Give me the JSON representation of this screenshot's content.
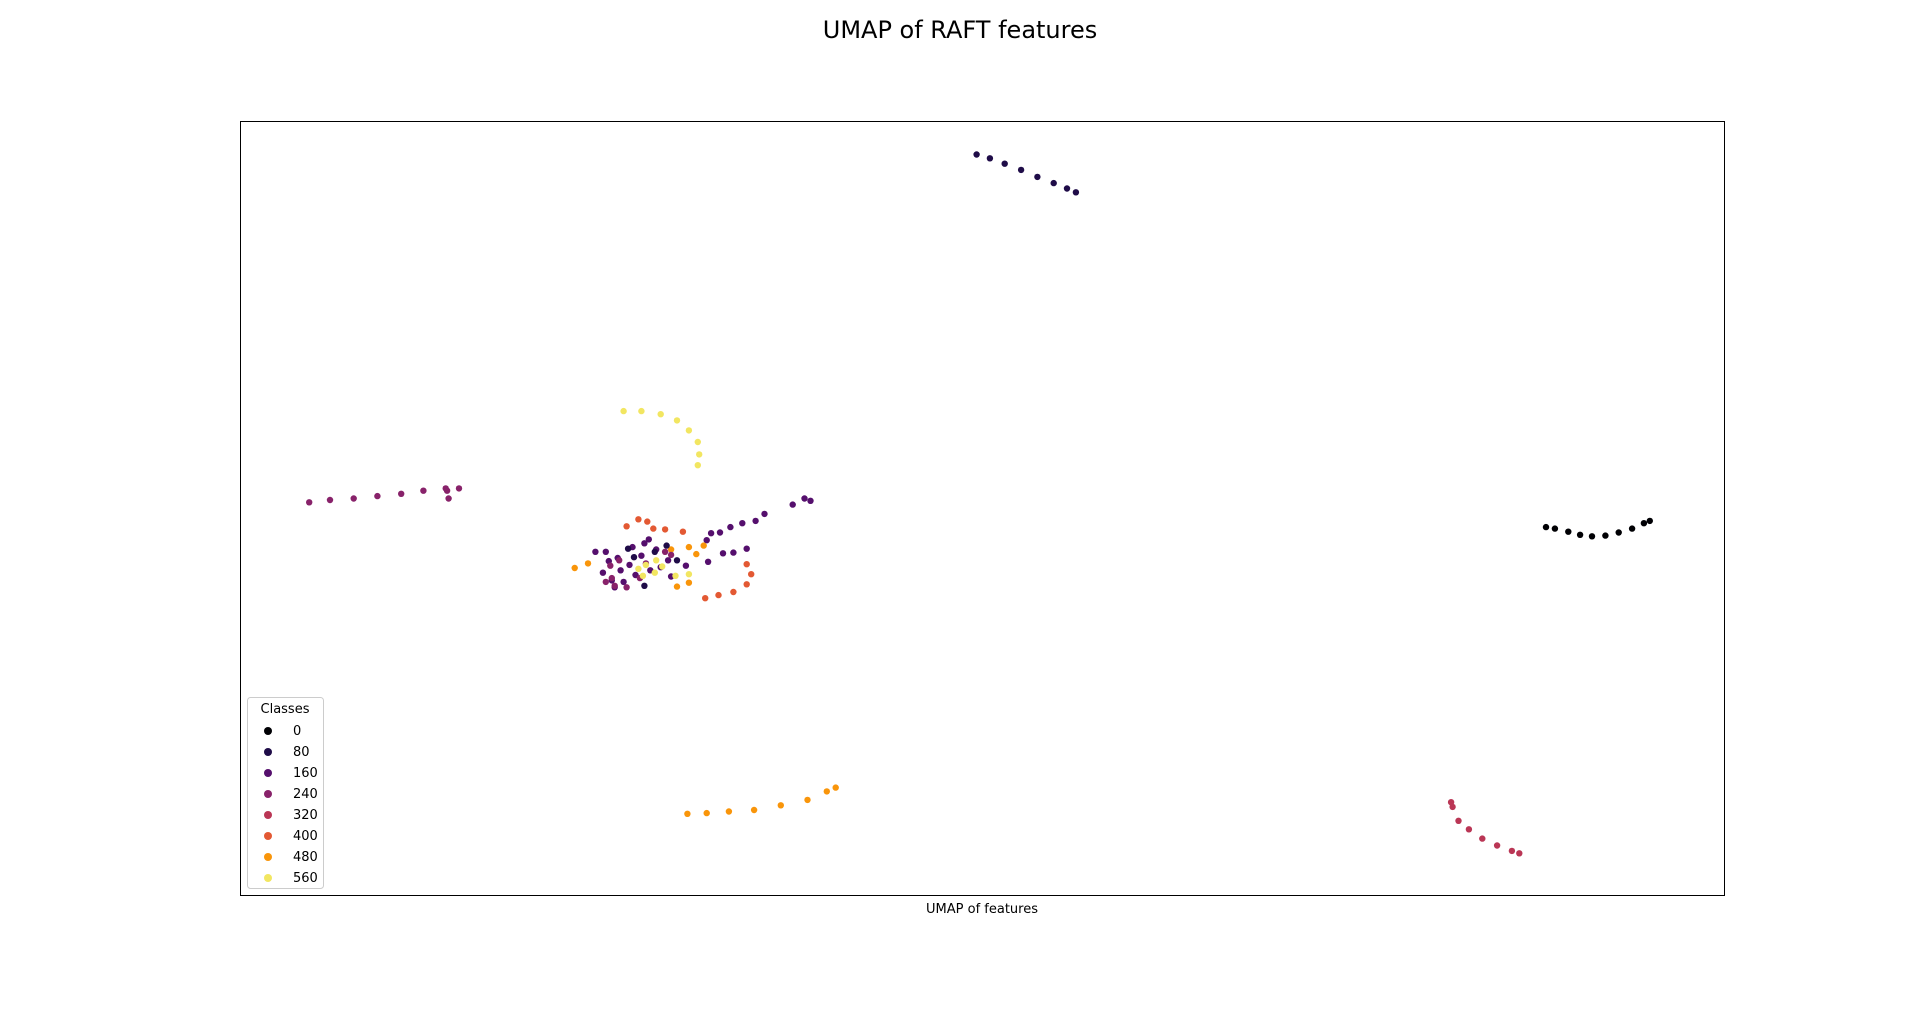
{
  "chart_data": {
    "type": "scatter",
    "title": "UMAP of RAFT features",
    "xlabel": "UMAP of features",
    "ylabel": "",
    "xlim": [
      0,
      100
    ],
    "ylim": [
      0,
      100
    ],
    "ticks": false,
    "grid": false,
    "legend": {
      "title": "Classes",
      "placement": "bottom-left",
      "entries": [
        {
          "label": "0",
          "color": "#000004"
        },
        {
          "label": "80",
          "color": "#1f0c48"
        },
        {
          "label": "160",
          "color": "#550f6d"
        },
        {
          "label": "240",
          "color": "#88226a"
        },
        {
          "label": "320",
          "color": "#ba3655"
        },
        {
          "label": "400",
          "color": "#e35933"
        },
        {
          "label": "480",
          "color": "#f9950a"
        },
        {
          "label": "560",
          "color": "#f2e661"
        }
      ]
    },
    "clusters": [
      {
        "class": "80",
        "color": "#1f0c48",
        "points": [
          [
            49.6,
            95.8
          ],
          [
            50.5,
            95.3
          ],
          [
            51.5,
            94.6
          ],
          [
            52.6,
            93.8
          ],
          [
            53.7,
            92.9
          ],
          [
            54.8,
            92.1
          ],
          [
            55.7,
            91.4
          ],
          [
            56.3,
            90.9
          ]
        ]
      },
      {
        "class": "0",
        "color": "#000004",
        "points": [
          [
            88.0,
            47.6
          ],
          [
            88.6,
            47.4
          ],
          [
            89.5,
            47.0
          ],
          [
            90.3,
            46.6
          ],
          [
            91.1,
            46.4
          ],
          [
            92.0,
            46.5
          ],
          [
            92.9,
            46.9
          ],
          [
            93.8,
            47.4
          ],
          [
            94.6,
            48.1
          ],
          [
            95.0,
            48.4
          ]
        ]
      },
      {
        "class": "560",
        "color": "#f2e661",
        "points": [
          [
            25.8,
            62.6
          ],
          [
            27.0,
            62.6
          ],
          [
            28.3,
            62.2
          ],
          [
            29.4,
            61.4
          ],
          [
            30.2,
            60.1
          ],
          [
            30.8,
            58.6
          ],
          [
            30.9,
            57.0
          ],
          [
            30.8,
            55.6
          ]
        ]
      },
      {
        "class": "240",
        "color": "#88226a",
        "points": [
          [
            4.6,
            50.8
          ],
          [
            6.0,
            51.1
          ],
          [
            7.6,
            51.3
          ],
          [
            9.2,
            51.6
          ],
          [
            10.8,
            51.9
          ],
          [
            12.3,
            52.3
          ],
          [
            13.8,
            52.6
          ],
          [
            14.7,
            52.6
          ],
          [
            13.9,
            52.3
          ],
          [
            14.0,
            51.3
          ]
        ]
      },
      {
        "class": "160",
        "color": "#550f6d",
        "points": [
          [
            31.7,
            46.8
          ],
          [
            32.3,
            46.9
          ],
          [
            33.0,
            47.6
          ],
          [
            33.8,
            48.1
          ],
          [
            34.7,
            48.4
          ],
          [
            35.3,
            49.3
          ],
          [
            37.2,
            50.5
          ],
          [
            38.0,
            51.3
          ],
          [
            38.4,
            51.0
          ],
          [
            31.4,
            45.9
          ],
          [
            32.5,
            44.2
          ],
          [
            33.2,
            44.3
          ],
          [
            34.1,
            44.8
          ],
          [
            31.5,
            43.1
          ],
          [
            30.0,
            42.6
          ]
        ]
      },
      {
        "class": "400",
        "color": "#e35933",
        "points": [
          [
            26.0,
            47.7
          ],
          [
            26.8,
            48.6
          ],
          [
            27.4,
            48.3
          ],
          [
            27.8,
            47.4
          ],
          [
            28.6,
            47.3
          ],
          [
            29.8,
            47.0
          ],
          [
            34.1,
            42.8
          ],
          [
            34.4,
            41.5
          ],
          [
            34.1,
            40.2
          ],
          [
            33.2,
            39.2
          ],
          [
            32.2,
            38.8
          ],
          [
            31.3,
            38.4
          ]
        ]
      },
      {
        "class": "480",
        "color": "#f9950a",
        "points": [
          [
            22.5,
            42.3
          ],
          [
            23.4,
            42.9
          ],
          [
            29.0,
            44.7
          ],
          [
            30.7,
            44.1
          ],
          [
            30.2,
            40.4
          ],
          [
            29.4,
            39.9
          ],
          [
            30.2,
            45.0
          ],
          [
            31.2,
            45.2
          ]
        ]
      },
      {
        "class": "480",
        "color": "#f9950a",
        "points": [
          [
            30.1,
            10.5
          ],
          [
            31.4,
            10.6
          ],
          [
            32.9,
            10.8
          ],
          [
            34.6,
            11.0
          ],
          [
            36.4,
            11.6
          ],
          [
            38.2,
            12.3
          ],
          [
            39.5,
            13.4
          ],
          [
            40.1,
            13.9
          ]
        ]
      },
      {
        "class": "320",
        "color": "#ba3655",
        "points": [
          [
            81.6,
            12.0
          ],
          [
            81.7,
            11.4
          ],
          [
            82.1,
            9.6
          ],
          [
            82.8,
            8.5
          ],
          [
            83.7,
            7.3
          ],
          [
            84.7,
            6.4
          ],
          [
            85.7,
            5.7
          ],
          [
            86.2,
            5.4
          ]
        ]
      },
      {
        "class": "mix",
        "color": "#550f6d",
        "points": [
          [
            24.6,
            44.4
          ],
          [
            25.4,
            43.6
          ],
          [
            26.4,
            45.0
          ],
          [
            27.2,
            45.5
          ],
          [
            28.0,
            44.7
          ],
          [
            28.8,
            43.3
          ],
          [
            27.6,
            42.0
          ],
          [
            26.6,
            41.4
          ],
          [
            25.8,
            40.5
          ],
          [
            25.0,
            40.7
          ],
          [
            24.4,
            41.7
          ],
          [
            24.8,
            43.2
          ],
          [
            25.6,
            42.0
          ],
          [
            26.2,
            42.7
          ],
          [
            27.0,
            43.9
          ],
          [
            28.3,
            42.4
          ],
          [
            29.0,
            41.2
          ],
          [
            23.9,
            44.4
          ],
          [
            27.5,
            46.0
          ],
          [
            25.2,
            39.8
          ]
        ]
      },
      {
        "class": "mix",
        "color": "#88226a",
        "points": [
          [
            25.0,
            41.0
          ],
          [
            25.2,
            40.0
          ],
          [
            26.0,
            39.8
          ],
          [
            24.9,
            42.6
          ],
          [
            25.5,
            43.3
          ],
          [
            26.9,
            41.0
          ],
          [
            27.3,
            42.9
          ],
          [
            28.6,
            44.4
          ],
          [
            29.0,
            44.0
          ],
          [
            24.6,
            40.5
          ]
        ]
      },
      {
        "class": "mix",
        "color": "#f2e661",
        "points": [
          [
            26.8,
            42.2
          ],
          [
            27.3,
            42.7
          ],
          [
            27.9,
            41.7
          ],
          [
            28.4,
            42.5
          ],
          [
            29.3,
            41.3
          ],
          [
            30.2,
            41.5
          ],
          [
            27.1,
            41.3
          ],
          [
            28.0,
            43.3
          ]
        ]
      },
      {
        "class": "mix",
        "color": "#1f0c48",
        "points": [
          [
            26.5,
            43.7
          ],
          [
            27.9,
            44.4
          ],
          [
            28.7,
            45.2
          ],
          [
            29.4,
            43.3
          ],
          [
            27.2,
            40.0
          ],
          [
            26.1,
            44.8
          ]
        ]
      }
    ]
  }
}
